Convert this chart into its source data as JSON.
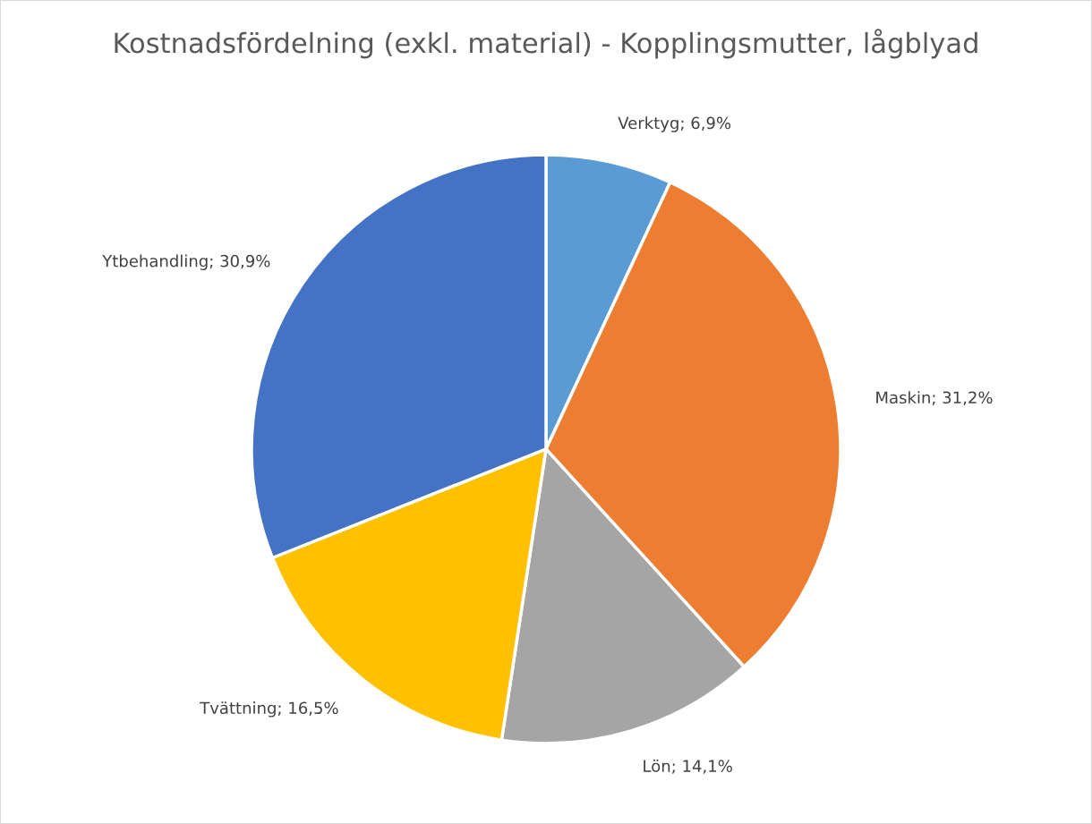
{
  "chart_data": {
    "type": "pie",
    "title": "Kostnadsfördelning (exkl. material) - Kopplingsmutter, lågblyad",
    "categories": [
      "Verktyg",
      "Maskin",
      "Lön",
      "Tvättning",
      "Ytbehandling"
    ],
    "values": [
      6.9,
      31.2,
      14.1,
      16.5,
      30.9
    ],
    "colors": [
      "#5b9bd5",
      "#ed7d31",
      "#a5a5a5",
      "#ffc000",
      "#4472c4"
    ],
    "value_labels": [
      "6,9%",
      "31,2%",
      "14,1%",
      "16,5%",
      "30,9%"
    ],
    "legend": false
  }
}
